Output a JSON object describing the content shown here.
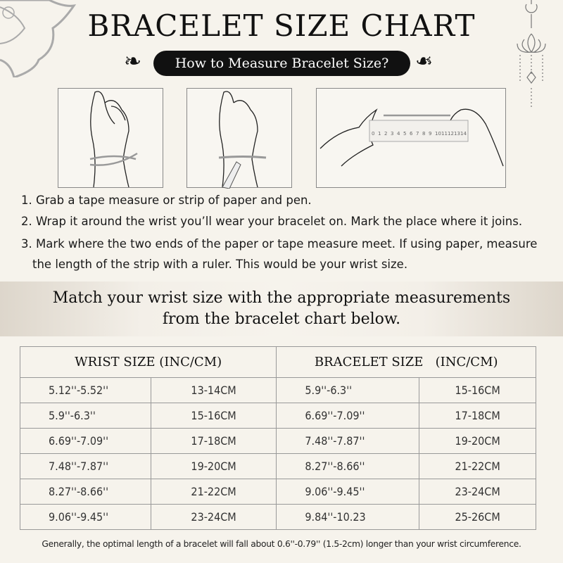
{
  "title": "BRACELET SIZE CHART",
  "subtitle": "How to Measure Bracelet Size?",
  "ruler_labels": [
    "0",
    "1",
    "2",
    "3",
    "4",
    "5",
    "6",
    "7",
    "8",
    "9",
    "10",
    "11",
    "12",
    "13",
    "14"
  ],
  "steps": [
    "1. Grab a tape measure or strip of paper and pen.",
    "2. Wrap it around the wrist you’ll wear your bracelet on. Mark the place where it joins.",
    "3. Mark where the two ends of the paper or tape measure meet. If using paper, measure",
    "the length of the strip with a ruler. This would be your wrist size."
  ],
  "match_text": [
    "Match your wrist size with the appropriate measurements",
    "from the bracelet chart below."
  ],
  "table": {
    "headers": [
      "WRIST SIZE (INC/CM)",
      "BRACELET SIZE   (INC/CM)"
    ],
    "rows": [
      [
        "5.12''-5.52''",
        "13-14CM",
        "5.9''-6.3''",
        "15-16CM"
      ],
      [
        "5.9''-6.3''",
        "15-16CM",
        "6.69''-7.09''",
        "17-18CM"
      ],
      [
        "6.69''-7.09''",
        "17-18CM",
        "7.48''-7.87''",
        "19-20CM"
      ],
      [
        "7.48''-7.87''",
        "19-20CM",
        "8.27''-8.66''",
        "21-22CM"
      ],
      [
        "8.27''-8.66''",
        "21-22CM",
        "9.06''-9.45''",
        "23-24CM"
      ],
      [
        "9.06''-9.45''",
        "23-24CM",
        "9.84''-10.23",
        "25-26CM"
      ]
    ]
  },
  "note": "Generally, the optimal length of a bracelet will fall about 0.6''-0.79'' (1.5-2cm) longer than your wrist circumference.",
  "colors": {
    "background": "#f6f3ec",
    "pill": "#111111",
    "border": "#999999"
  }
}
